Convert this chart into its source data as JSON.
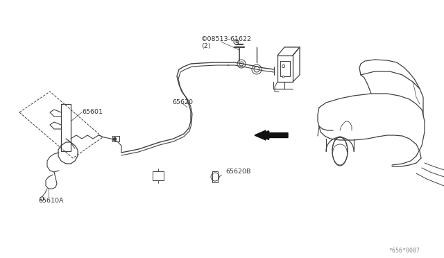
{
  "bg_color": "#ffffff",
  "line_color": "#404040",
  "label_color": "#333333",
  "labels": {
    "part_number_08513": "©08513-61622\n(2)",
    "part_65620": "65620",
    "part_65601": "65601",
    "part_65610A": "65610A",
    "part_65620B": "65620B",
    "diagram_code": "*656*0087"
  },
  "figsize": [
    6.4,
    3.72
  ],
  "dpi": 100
}
